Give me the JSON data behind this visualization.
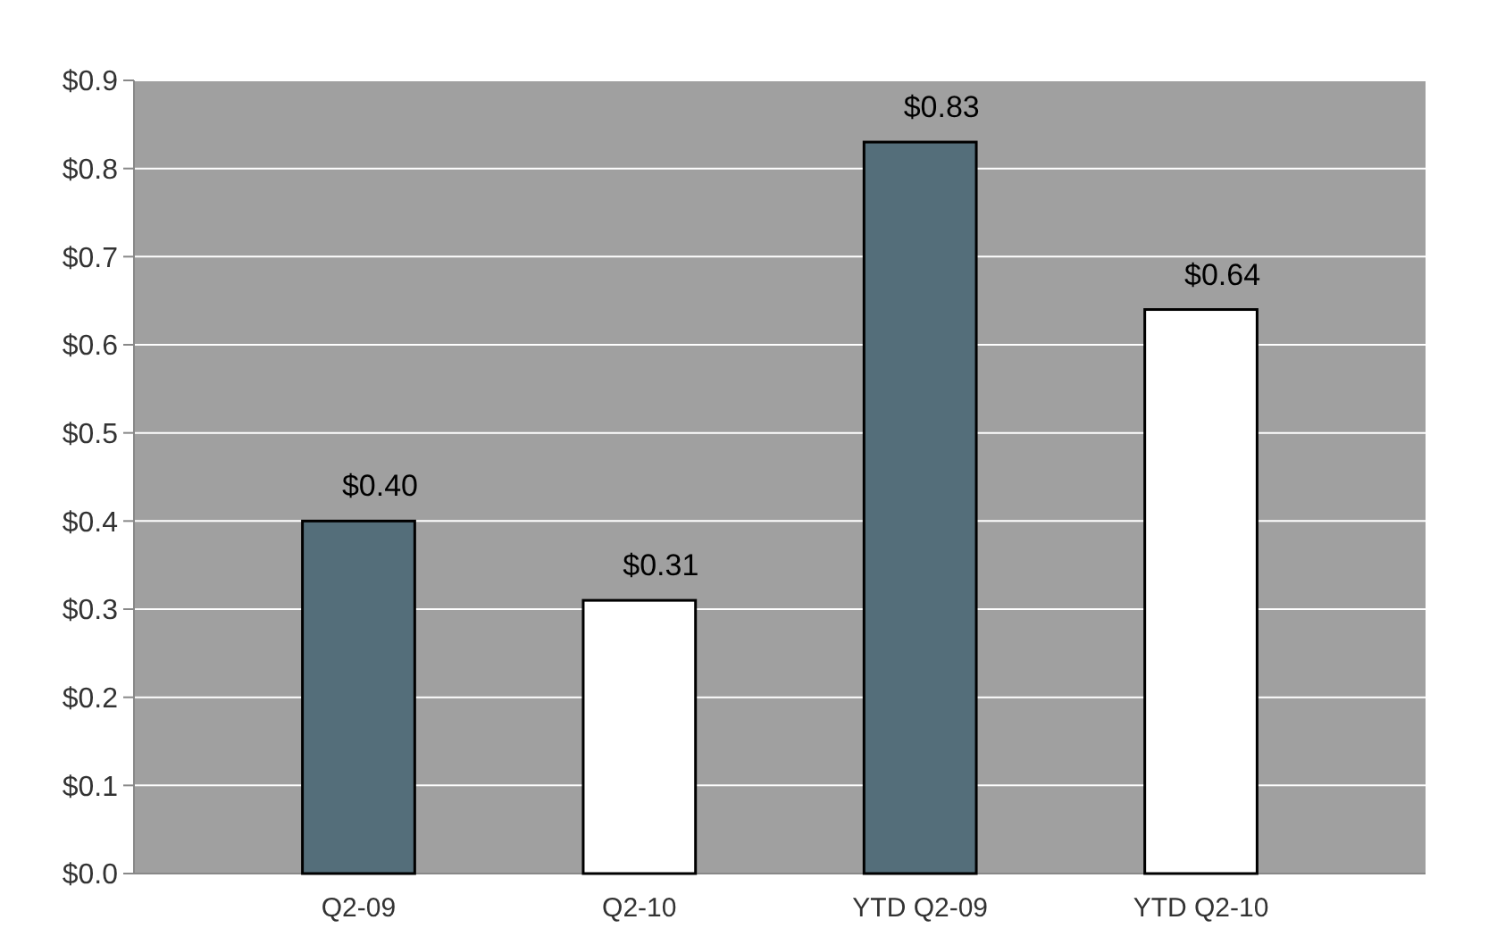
{
  "chart_data": {
    "type": "bar",
    "categories": [
      "Q2-09",
      "Q2-10",
      "YTD Q2-09",
      "YTD Q2-10"
    ],
    "values": [
      0.4,
      0.31,
      0.83,
      0.64
    ],
    "colors": [
      "#546e7a",
      "#ffffff",
      "#546e7a",
      "#ffffff"
    ],
    "value_labels": [
      "$0.40",
      "$0.31",
      "$0.83",
      "$0.64"
    ],
    "ylim": [
      0,
      0.9
    ],
    "yticks": [
      {
        "value": 0,
        "label": "$0.0"
      },
      {
        "value": 0.1,
        "label": "$0.1"
      },
      {
        "value": 0.2,
        "label": "$0.2"
      },
      {
        "value": 0.3,
        "label": "$0.3"
      },
      {
        "value": 0.4,
        "label": "$0.4"
      },
      {
        "value": 0.5,
        "label": "$0.5"
      },
      {
        "value": 0.6,
        "label": "$0.6"
      },
      {
        "value": 0.7,
        "label": "$0.7"
      },
      {
        "value": 0.8,
        "label": "$0.8"
      },
      {
        "value": 0.9,
        "label": "$0.9"
      }
    ],
    "grid": "y"
  }
}
